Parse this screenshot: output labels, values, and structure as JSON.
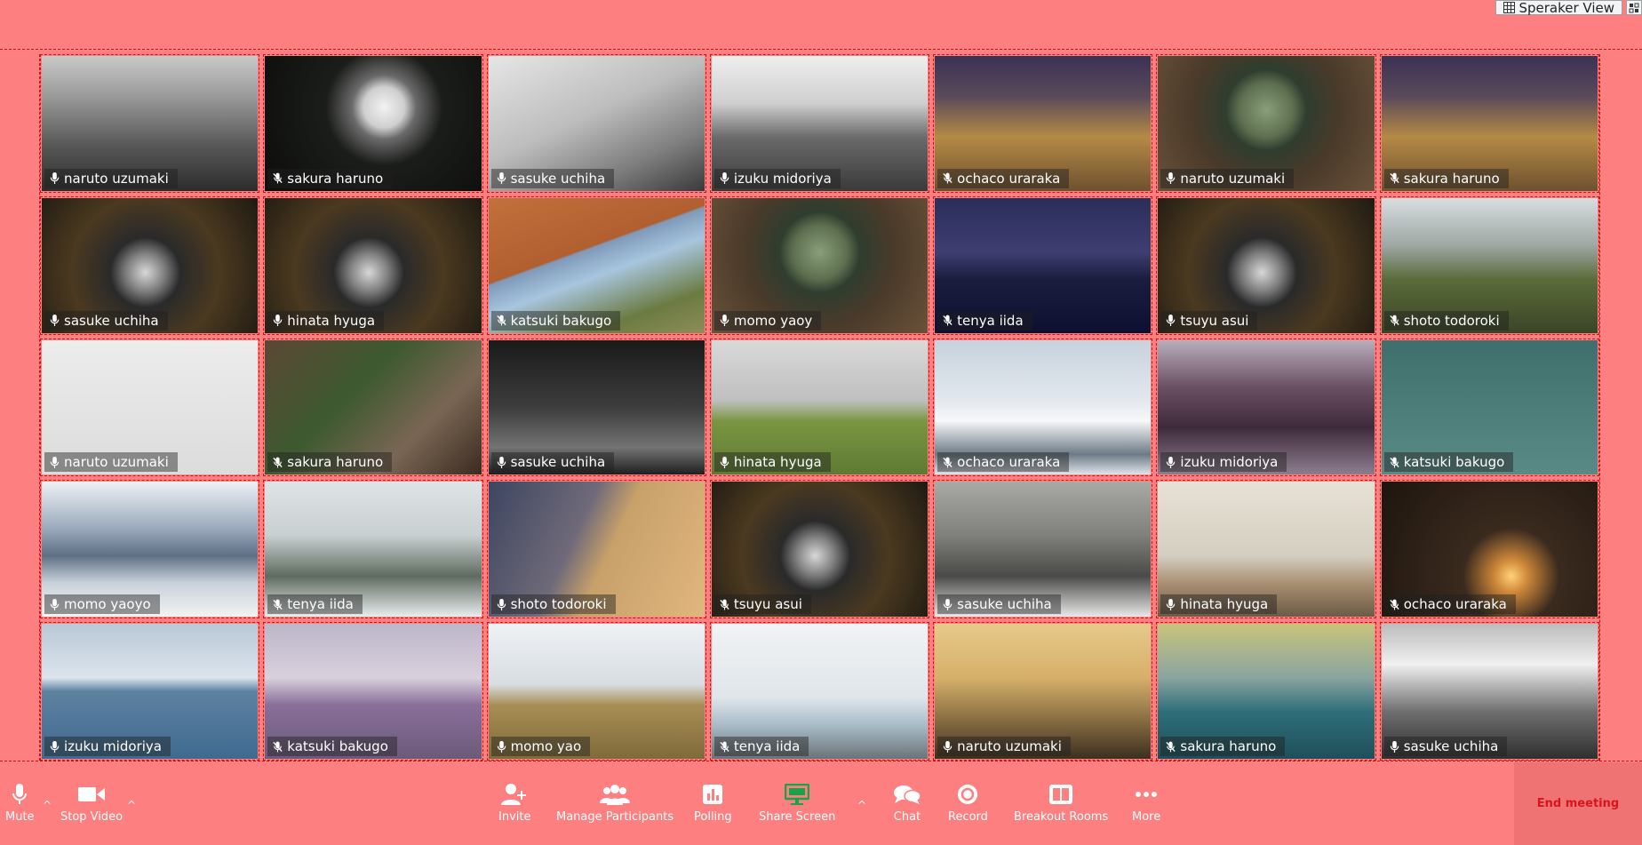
{
  "top": {
    "view_label": "Speraker View"
  },
  "participants": [
    {
      "name": "naruto uzumaki",
      "muted": false,
      "photo": "city-bw"
    },
    {
      "name": "sakura haruno",
      "muted": true,
      "photo": "dandelion"
    },
    {
      "name": "sasuke uchiha",
      "muted": false,
      "photo": "stairs-bw"
    },
    {
      "name": "izuku midoriya",
      "muted": false,
      "photo": "hill-bw"
    },
    {
      "name": "ochaco uraraka",
      "muted": true,
      "photo": "rail-night"
    },
    {
      "name": "naruto uzumaki",
      "muted": false,
      "photo": "cactus"
    },
    {
      "name": "sakura haruno",
      "muted": true,
      "photo": "rail-night"
    },
    {
      "name": "sasuke uchiha",
      "muted": false,
      "photo": "camera"
    },
    {
      "name": "hinata hyuga",
      "muted": false,
      "photo": "camera"
    },
    {
      "name": "katsuki bakugo",
      "muted": true,
      "photo": "uluru"
    },
    {
      "name": "momo yaoy",
      "muted": false,
      "photo": "cactus"
    },
    {
      "name": "tenya iida",
      "muted": true,
      "photo": "bridge-night"
    },
    {
      "name": "tsuyu asui",
      "muted": false,
      "photo": "camera"
    },
    {
      "name": "shoto todoroki",
      "muted": true,
      "photo": "valley"
    },
    {
      "name": "naruto uzumaki",
      "muted": false,
      "photo": "tools"
    },
    {
      "name": "sakura haruno",
      "muted": true,
      "photo": "leaves"
    },
    {
      "name": "sasuke uchiha",
      "muted": false,
      "photo": "forest-bw"
    },
    {
      "name": "hinata hyuga",
      "muted": false,
      "photo": "trees-path"
    },
    {
      "name": "ochaco uraraka",
      "muted": true,
      "photo": "snow-mountain"
    },
    {
      "name": "izuku midoriya",
      "muted": false,
      "photo": "canal"
    },
    {
      "name": "katsuki bakugo",
      "muted": true,
      "photo": "birds-teal"
    },
    {
      "name": "momo yaoyo",
      "muted": false,
      "photo": "skyline"
    },
    {
      "name": "tenya iida",
      "muted": true,
      "photo": "snow-trees"
    },
    {
      "name": "shoto todoroki",
      "muted": false,
      "photo": "dune"
    },
    {
      "name": "tsuyu asui",
      "muted": true,
      "photo": "camera"
    },
    {
      "name": "sasuke uchiha",
      "muted": false,
      "photo": "ruin"
    },
    {
      "name": "hinata hyuga",
      "muted": false,
      "photo": "post-beach"
    },
    {
      "name": "ochaco uraraka",
      "muted": true,
      "photo": "sunset-bridge"
    },
    {
      "name": "izuku midoriya",
      "muted": false,
      "photo": "sea-ships"
    },
    {
      "name": "katsuki bakugo",
      "muted": true,
      "photo": "estuary"
    },
    {
      "name": "momo yao",
      "muted": false,
      "photo": "beach-chair"
    },
    {
      "name": "tenya iida",
      "muted": true,
      "photo": "birds-wall"
    },
    {
      "name": "naruto uzumaki",
      "muted": false,
      "photo": "pier"
    },
    {
      "name": "sakura haruno",
      "muted": true,
      "photo": "sea-city"
    },
    {
      "name": "sasuke uchiha",
      "muted": false,
      "photo": "clouds-bw"
    }
  ],
  "toolbar": {
    "mute": "Mute",
    "stop_video": "Stop Video",
    "invite": "Invite",
    "manage_participants": "Manage Participants",
    "polling": "Polling",
    "share_screen": "Share Screen",
    "chat": "Chat",
    "record": "Record",
    "breakout_rooms": "Breakout Rooms",
    "more": "More",
    "end_meeting": "End meeting"
  },
  "colors": {
    "background": "#fd7f7f",
    "share_green": "#16a34a",
    "end_red": "#d8151d"
  }
}
